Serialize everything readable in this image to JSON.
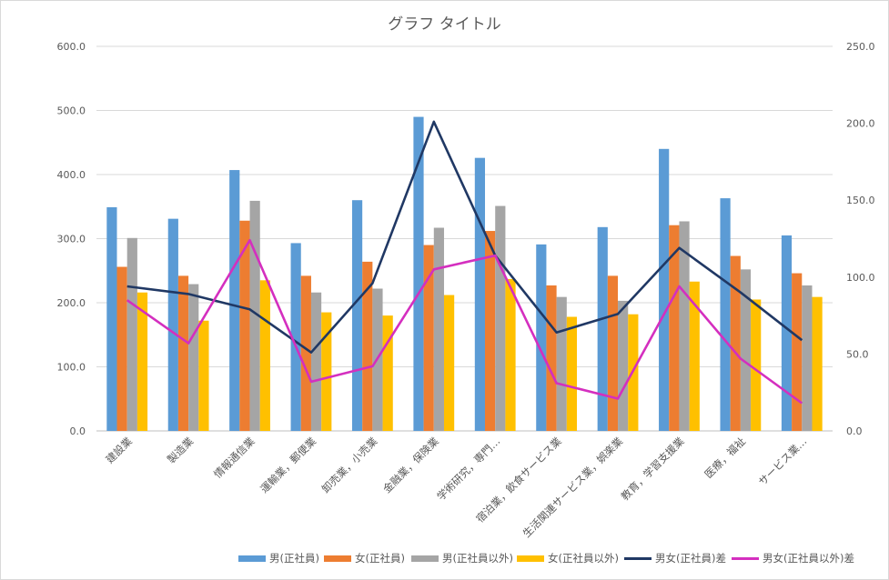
{
  "chart_data": {
    "type": "bar",
    "title": "グラフ タイトル",
    "categories": [
      "建設業",
      "製造業",
      "情報通信業",
      "運輸業，郵便業",
      "卸売業，小売業",
      "金融業，保険業",
      "学術研究，専門…",
      "宿泊業，飲食サービス業",
      "生活関連サービス業，娯楽業",
      "教育，学習支援業",
      "医療，福祉",
      "サービス業…"
    ],
    "ylim": [
      0,
      600
    ],
    "y_ticks": [
      "0.0",
      "100.0",
      "200.0",
      "300.0",
      "400.0",
      "500.0",
      "600.0"
    ],
    "y2lim": [
      0,
      250
    ],
    "y2_ticks": [
      "0.0",
      "50.0",
      "100.0",
      "150.0",
      "200.0",
      "250.0"
    ],
    "grid": true,
    "legend_position": "bottom",
    "series": [
      {
        "name": "男(正社員)",
        "type": "bar",
        "axis": "left",
        "color": "#5B9BD5",
        "values": [
          349,
          331,
          407,
          293,
          360,
          490,
          426,
          291,
          318,
          440,
          363,
          305
        ]
      },
      {
        "name": "女(正社員)",
        "type": "bar",
        "axis": "left",
        "color": "#ED7D31",
        "values": [
          256,
          242,
          328,
          242,
          264,
          290,
          312,
          227,
          242,
          321,
          273,
          246
        ]
      },
      {
        "name": "男(正社員以外)",
        "type": "bar",
        "axis": "left",
        "color": "#A5A5A5",
        "values": [
          301,
          229,
          359,
          216,
          222,
          317,
          351,
          209,
          203,
          327,
          252,
          227
        ]
      },
      {
        "name": "女(正社員以外)",
        "type": "bar",
        "axis": "left",
        "color": "#FFC000",
        "values": [
          216,
          172,
          235,
          185,
          180,
          212,
          237,
          178,
          182,
          233,
          205,
          209
        ]
      },
      {
        "name": "男女(正社員)差",
        "type": "line",
        "axis": "right",
        "color": "#203864",
        "values": [
          94,
          89,
          79,
          51,
          96,
          201,
          114,
          64,
          76,
          119,
          90,
          59
        ]
      },
      {
        "name": "男女(正社員以外)差",
        "type": "line",
        "axis": "right",
        "color": "#D42FBF",
        "values": [
          85,
          57,
          124,
          32,
          42,
          105,
          114,
          31,
          21,
          94,
          47,
          18
        ]
      }
    ]
  }
}
